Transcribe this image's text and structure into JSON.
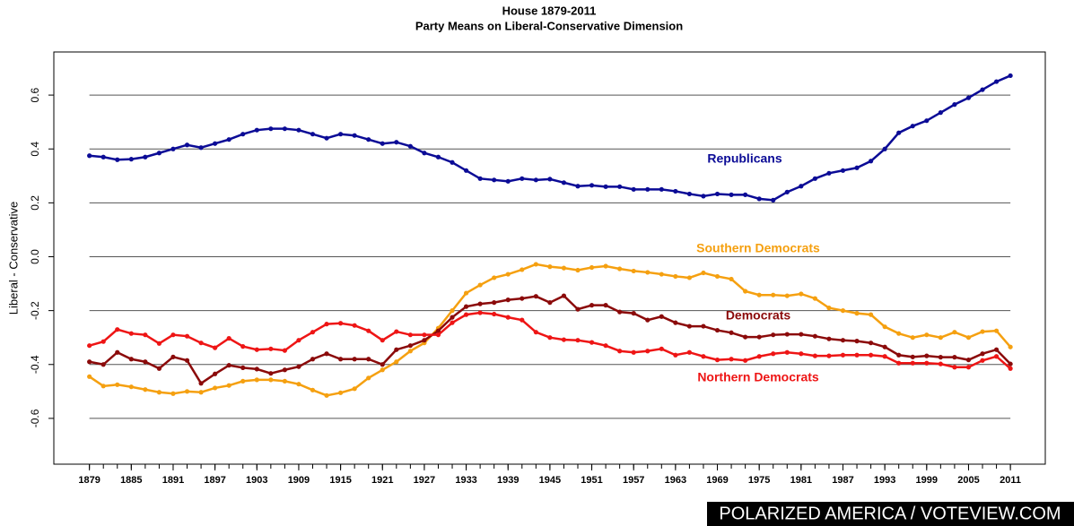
{
  "chart_data": {
    "type": "line",
    "title": "House 1879-2011",
    "subtitle": "Party Means on Liberal-Conservative Dimension",
    "ylabel": "Liberal - Conservative",
    "watermark": "POLARIZED AMERICA / VOTEVIEW.COM",
    "x": [
      1879,
      1881,
      1883,
      1885,
      1887,
      1889,
      1891,
      1893,
      1895,
      1897,
      1899,
      1901,
      1903,
      1905,
      1907,
      1909,
      1911,
      1913,
      1915,
      1917,
      1919,
      1921,
      1923,
      1925,
      1927,
      1929,
      1931,
      1933,
      1935,
      1937,
      1939,
      1941,
      1943,
      1945,
      1947,
      1949,
      1951,
      1953,
      1955,
      1957,
      1959,
      1961,
      1963,
      1965,
      1967,
      1969,
      1971,
      1973,
      1975,
      1977,
      1979,
      1981,
      1983,
      1985,
      1987,
      1989,
      1991,
      1993,
      1995,
      1997,
      1999,
      2001,
      2003,
      2005,
      2007,
      2009,
      2011
    ],
    "xlim": [
      1873.9,
      2016
    ],
    "xticks": [
      1879,
      1885,
      1891,
      1897,
      1903,
      1909,
      1915,
      1921,
      1927,
      1933,
      1939,
      1945,
      1951,
      1957,
      1963,
      1969,
      1975,
      1981,
      1987,
      1993,
      1999,
      2005,
      2011
    ],
    "ylim": [
      -0.77,
      0.76
    ],
    "yticks": [
      -0.6,
      -0.4,
      -0.2,
      {
        "value": 0,
        "label": "0.0"
      },
      0.2,
      0.4,
      0.6
    ],
    "grid": true,
    "series": [
      {
        "name": "Republicans",
        "color": "#0b0b96",
        "values": [
          0.375,
          0.37,
          0.36,
          0.362,
          0.37,
          0.385,
          0.4,
          0.415,
          0.405,
          0.42,
          0.435,
          0.455,
          0.47,
          0.475,
          0.475,
          0.47,
          0.455,
          0.44,
          0.455,
          0.45,
          0.435,
          0.42,
          0.425,
          0.41,
          0.385,
          0.37,
          0.35,
          0.32,
          0.29,
          0.285,
          0.28,
          0.29,
          0.285,
          0.288,
          0.275,
          0.262,
          0.265,
          0.26,
          0.26,
          0.25,
          0.25,
          0.25,
          0.243,
          0.233,
          0.225,
          0.233,
          0.23,
          0.23,
          0.215,
          0.21,
          0.24,
          0.262,
          0.29,
          0.31,
          0.32,
          0.33,
          0.355,
          0.4,
          0.46,
          0.485,
          0.505,
          0.535,
          0.565,
          0.59,
          0.62,
          0.65,
          0.672
        ]
      },
      {
        "name": "Southern Democrats",
        "color": "#f5a010",
        "values": [
          -0.445,
          -0.48,
          -0.475,
          -0.483,
          -0.493,
          -0.503,
          -0.508,
          -0.5,
          -0.503,
          -0.487,
          -0.478,
          -0.462,
          -0.457,
          -0.457,
          -0.462,
          -0.473,
          -0.495,
          -0.515,
          -0.505,
          -0.49,
          -0.45,
          -0.42,
          -0.39,
          -0.35,
          -0.32,
          -0.265,
          -0.2,
          -0.135,
          -0.105,
          -0.078,
          -0.065,
          -0.048,
          -0.028,
          -0.037,
          -0.042,
          -0.05,
          -0.04,
          -0.035,
          -0.045,
          -0.053,
          -0.058,
          -0.065,
          -0.073,
          -0.078,
          -0.06,
          -0.073,
          -0.083,
          -0.128,
          -0.142,
          -0.142,
          -0.145,
          -0.138,
          -0.155,
          -0.19,
          -0.2,
          -0.21,
          -0.215,
          -0.26,
          -0.285,
          -0.3,
          -0.29,
          -0.3,
          -0.28,
          -0.3,
          -0.278,
          -0.275,
          -0.335
        ]
      },
      {
        "name": "Democrats",
        "color": "#8b0a0a",
        "values": [
          -0.39,
          -0.4,
          -0.355,
          -0.38,
          -0.39,
          -0.415,
          -0.372,
          -0.385,
          -0.47,
          -0.435,
          -0.403,
          -0.412,
          -0.417,
          -0.433,
          -0.42,
          -0.408,
          -0.38,
          -0.36,
          -0.38,
          -0.38,
          -0.38,
          -0.4,
          -0.345,
          -0.33,
          -0.31,
          -0.275,
          -0.225,
          -0.185,
          -0.175,
          -0.17,
          -0.16,
          -0.155,
          -0.147,
          -0.17,
          -0.145,
          -0.195,
          -0.18,
          -0.18,
          -0.205,
          -0.21,
          -0.235,
          -0.222,
          -0.245,
          -0.258,
          -0.258,
          -0.273,
          -0.282,
          -0.298,
          -0.298,
          -0.29,
          -0.288,
          -0.288,
          -0.295,
          -0.305,
          -0.31,
          -0.313,
          -0.32,
          -0.335,
          -0.365,
          -0.372,
          -0.368,
          -0.373,
          -0.373,
          -0.383,
          -0.36,
          -0.345,
          -0.398
        ]
      },
      {
        "name": "Northern Democrats",
        "color": "#ee1515",
        "values": [
          -0.33,
          -0.315,
          -0.27,
          -0.285,
          -0.29,
          -0.322,
          -0.29,
          -0.295,
          -0.32,
          -0.338,
          -0.303,
          -0.333,
          -0.345,
          -0.342,
          -0.348,
          -0.31,
          -0.28,
          -0.25,
          -0.247,
          -0.255,
          -0.275,
          -0.31,
          -0.278,
          -0.29,
          -0.29,
          -0.29,
          -0.245,
          -0.215,
          -0.208,
          -0.213,
          -0.225,
          -0.235,
          -0.28,
          -0.3,
          -0.308,
          -0.31,
          -0.318,
          -0.33,
          -0.35,
          -0.355,
          -0.35,
          -0.342,
          -0.365,
          -0.355,
          -0.37,
          -0.383,
          -0.38,
          -0.385,
          -0.37,
          -0.36,
          -0.355,
          -0.36,
          -0.368,
          -0.368,
          -0.365,
          -0.365,
          -0.365,
          -0.37,
          -0.395,
          -0.395,
          -0.395,
          -0.398,
          -0.41,
          -0.41,
          -0.385,
          -0.37,
          -0.415
        ]
      }
    ]
  }
}
